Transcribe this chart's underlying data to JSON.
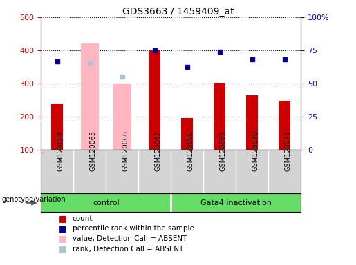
{
  "title": "GDS3663 / 1459409_at",
  "samples": [
    "GSM120064",
    "GSM120065",
    "GSM120066",
    "GSM120067",
    "GSM120068",
    "GSM120069",
    "GSM120070",
    "GSM120071"
  ],
  "count_values": [
    240,
    null,
    null,
    400,
    195,
    303,
    265,
    247
  ],
  "absent_value_bars": [
    null,
    420,
    300,
    null,
    null,
    null,
    null,
    null
  ],
  "absent_rank_dots": [
    null,
    362,
    320,
    null,
    null,
    null,
    null,
    null
  ],
  "percentile_rank": [
    367,
    null,
    null,
    400,
    350,
    395,
    373,
    373
  ],
  "ylim_left": [
    100,
    500
  ],
  "yticks_left": [
    100,
    200,
    300,
    400,
    500
  ],
  "yticks_right": [
    0,
    25,
    50,
    75,
    100
  ],
  "ytick_labels_right": [
    "0",
    "25",
    "50",
    "75",
    "100%"
  ],
  "absent_bar_color": "#ffb6c1",
  "absent_rank_color": "#b0c0d8",
  "rank_dot_color": "#00008b",
  "count_color": "#cc0000",
  "left_tick_color": "#cc0000",
  "right_tick_color": "#0000cc",
  "bg_color": "#d3d3d3",
  "group_green": "#66dd66",
  "legend_labels": [
    "count",
    "percentile rank within the sample",
    "value, Detection Call = ABSENT",
    "rank, Detection Call = ABSENT"
  ],
  "legend_colors": [
    "#cc0000",
    "#00008b",
    "#ffb6c1",
    "#b0c0d8"
  ]
}
